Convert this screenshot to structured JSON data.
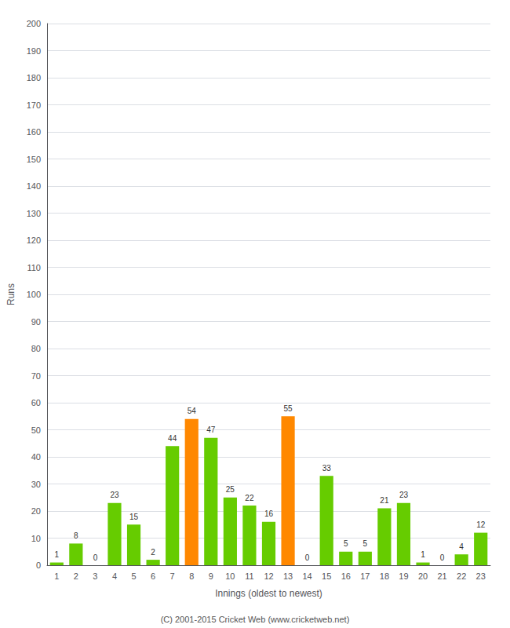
{
  "chart_data": {
    "type": "bar",
    "xlabel": "Innings (oldest to newest)",
    "ylabel": "Runs",
    "categories": [
      "1",
      "2",
      "3",
      "4",
      "5",
      "6",
      "7",
      "8",
      "9",
      "10",
      "11",
      "12",
      "13",
      "14",
      "15",
      "16",
      "17",
      "18",
      "19",
      "20",
      "21",
      "22",
      "23"
    ],
    "values": [
      1,
      8,
      0,
      23,
      15,
      2,
      44,
      54,
      47,
      25,
      22,
      16,
      55,
      0,
      33,
      5,
      5,
      21,
      23,
      1,
      0,
      4,
      12
    ],
    "colors": [
      "#66cc00",
      "#66cc00",
      "#66cc00",
      "#66cc00",
      "#66cc00",
      "#66cc00",
      "#66cc00",
      "#ff8800",
      "#66cc00",
      "#66cc00",
      "#66cc00",
      "#66cc00",
      "#ff8800",
      "#66cc00",
      "#66cc00",
      "#66cc00",
      "#66cc00",
      "#66cc00",
      "#66cc00",
      "#66cc00",
      "#66cc00",
      "#66cc00",
      "#66cc00"
    ],
    "ylim": [
      0,
      200
    ],
    "yticks": [
      0,
      10,
      20,
      30,
      40,
      50,
      60,
      70,
      80,
      90,
      100,
      110,
      120,
      130,
      140,
      150,
      160,
      170,
      180,
      190,
      200
    ],
    "grid": true,
    "data_labels": true,
    "annotations": [
      "(C) 2001-2015 Cricket Web (www.cricketweb.net)"
    ]
  }
}
